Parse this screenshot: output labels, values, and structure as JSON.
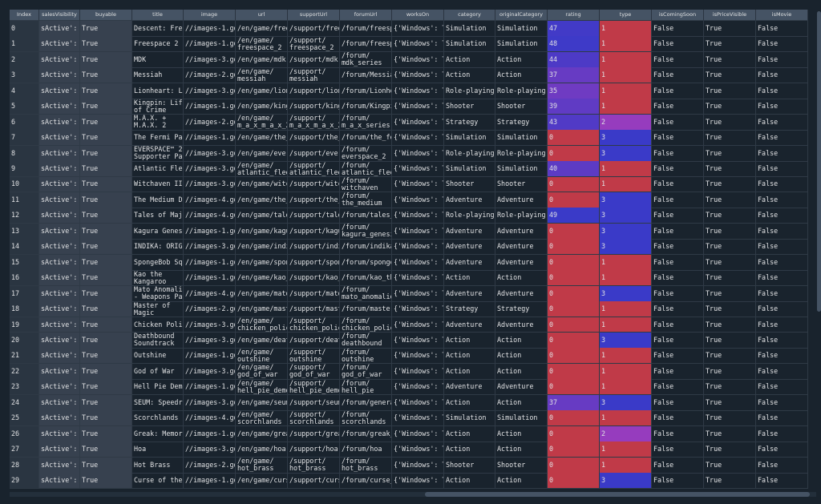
{
  "table": {
    "columns": [
      "Index",
      "salesVisibility",
      "buyable",
      "title",
      "image",
      "url",
      "supportUrl",
      "forumUrl",
      "worksOn",
      "category",
      "originalCategory",
      "rating",
      "type",
      "isComingSoon",
      "isPriceVisible",
      "isMovie"
    ],
    "rows": [
      [
        0,
        "sActive': …",
        "True",
        "Descent: Free…",
        "//images-1.go…",
        "/en/game/free…",
        "/support/free…",
        "/forum/freesp…",
        "{'Windows': T…",
        "Simulation",
        "Simulation",
        47,
        1,
        "False",
        "True",
        "False"
      ],
      [
        1,
        "sActive': …",
        "True",
        "Freespace 2",
        "//images-1.go…",
        "/en/game/\nfreespace_2",
        "/support/\nfreespace_2",
        "/forum/freesp…",
        "{'Windows': T…",
        "Simulation",
        "Simulation",
        48,
        1,
        "False",
        "True",
        "False"
      ],
      [
        2,
        "sActive': …",
        "True",
        "MDK",
        "//images-3.go…",
        "/en/game/mdk",
        "/support/mdk",
        "/forum/\nmdk_series",
        "{'Windows': T…",
        "Action",
        "Action",
        44,
        1,
        "False",
        "True",
        "False"
      ],
      [
        3,
        "sActive': …",
        "True",
        "Messiah",
        "//images-2.go…",
        "/en/game/\nmessiah",
        "/support/\nmessiah",
        "/forum/Messiah",
        "{'Windows': T…",
        "Action",
        "Action",
        37,
        1,
        "False",
        "True",
        "False"
      ],
      [
        4,
        "sActive': …",
        "True",
        "Lionheart: Le…",
        "//images-3.go…",
        "/en/game/lion…",
        "/support/lion…",
        "/forum/Lionhe…",
        "{'Windows': T…",
        "Role-playing",
        "Role-playing",
        35,
        1,
        "False",
        "True",
        "False"
      ],
      [
        5,
        "sActive': …",
        "True",
        "Kingpin: Life\nof Crime",
        "//images-1.go…",
        "/en/game/king…",
        "/support/king…",
        "/forum/Kingpi…",
        "{'Windows': T…",
        "Shooter",
        "Shooter",
        39,
        1,
        "False",
        "True",
        "False"
      ],
      [
        6,
        "sActive': …",
        "True",
        "M.A.X. +\nM.A.X. 2",
        "//images-2.go…",
        "/en/game/\nm_a_x_m_a_x_2",
        "/support/\nm_a_x_m_a_x_2",
        "/forum/\nm_a_x_series",
        "{'Windows': T…",
        "Strategy",
        "Strategy",
        43,
        2,
        "False",
        "True",
        "False"
      ],
      [
        7,
        "sActive': …",
        "True",
        "The Fermi Par…",
        "//images-1.go…",
        "/en/game/the_…",
        "/support/the_…",
        "/forum/the_fe…",
        "{'Windows': T…",
        "Simulation",
        "Simulation",
        0,
        3,
        "False",
        "True",
        "False"
      ],
      [
        8,
        "sActive': …",
        "True",
        "EVERSPACE™ 2 -\nSupporter Pack",
        "//images-3.go…",
        "/en/game/ever…",
        "/support/ever…",
        "/forum/\neverspace_2",
        "{'Windows': T…",
        "Role-playing",
        "Role-playing",
        0,
        3,
        "False",
        "True",
        "False"
      ],
      [
        9,
        "sActive': …",
        "True",
        "Atlantic Fleet",
        "//images-3.go…",
        "/en/game/\natlantic_fleet",
        "/support/\natlantic_fleet",
        "/forum/\natlantic_fleet",
        "{'Windows': T…",
        "Simulation",
        "Simulation",
        40,
        1,
        "False",
        "True",
        "False"
      ],
      [
        10,
        "sActive': …",
        "True",
        "Witchaven II:…",
        "//images-3.go…",
        "/en/game/witc…",
        "/support/witc…",
        "/forum/\nwitchaven",
        "{'Windows': T…",
        "Shooter",
        "Shooter",
        0,
        1,
        "False",
        "True",
        "False"
      ],
      [
        11,
        "sActive': …",
        "True",
        "The Medium De…",
        "//images-4.go…",
        "/en/game/the_…",
        "/support/the_…",
        "/forum/\nthe_medium",
        "{'Windows': T…",
        "Adventure",
        "Adventure",
        0,
        3,
        "False",
        "True",
        "False"
      ],
      [
        12,
        "sActive': …",
        "True",
        "Tales of Maj'…",
        "//images-4.go…",
        "/en/game/tale…",
        "/support/tale…",
        "/forum/tales_…",
        "{'Windows': T…",
        "Role-playing",
        "Role-playing",
        49,
        3,
        "False",
        "True",
        "False"
      ],
      [
        13,
        "sActive': …",
        "True",
        "Kagura Genesi…",
        "//images-1.go…",
        "/en/game/kagu…",
        "/support/kagu…",
        "/forum/\nkagura_genesis",
        "{'Windows': T…",
        "Adventure",
        "Adventure",
        0,
        3,
        "False",
        "True",
        "False"
      ],
      [
        14,
        "sActive': …",
        "True",
        "INDIKA: ORIGI…",
        "//images-3.go…",
        "/en/game/indi…",
        "/support/indi…",
        "/forum/indika",
        "{'Windows': T…",
        "Adventure",
        "Adventure",
        0,
        3,
        "False",
        "True",
        "False"
      ],
      [
        15,
        "sActive': …",
        "True",
        "SpongeBob Squ…",
        "//images-1.go…",
        "/en/game/spon…",
        "/support/spon…",
        "/forum/sponge…",
        "{'Windows': T…",
        "Adventure",
        "Adventure",
        0,
        1,
        "False",
        "True",
        "False"
      ],
      [
        16,
        "sActive': …",
        "True",
        "Kao the\nKangaroo",
        "//images-1.go…",
        "/en/game/kao_…",
        "/support/kao_…",
        "/forum/kao_th…",
        "{'Windows': T…",
        "Action",
        "Action",
        0,
        1,
        "False",
        "True",
        "False"
      ],
      [
        17,
        "sActive': …",
        "True",
        "Mato Anomalies\n- Weapons Pack",
        "//images-4.go…",
        "/en/game/mato…",
        "/support/mato…",
        "/forum/\nmato_anomalies",
        "{'Windows': T…",
        "Adventure",
        "Adventure",
        0,
        3,
        "False",
        "True",
        "False"
      ],
      [
        18,
        "sActive': …",
        "True",
        "Master of\nMagic",
        "//images-2.go…",
        "/en/game/mast…",
        "/support/mast…",
        "/forum/master…",
        "{'Windows': T…",
        "Strategy",
        "Strategy",
        0,
        1,
        "False",
        "True",
        "False"
      ],
      [
        19,
        "sActive': …",
        "True",
        "Chicken Police",
        "//images-3.go…",
        "/en/game/\nchicken_police",
        "/support/\nchicken_police",
        "/forum/\nchicken_police",
        "{'Windows': T…",
        "Adventure",
        "Adventure",
        0,
        1,
        "False",
        "True",
        "False"
      ],
      [
        20,
        "sActive': …",
        "True",
        "Deathbound\nSoundtrack",
        "//images-3.go…",
        "/en/game/deat…",
        "/support/deat…",
        "/forum/\ndeathbound",
        "{'Windows': T…",
        "Action",
        "Action",
        0,
        3,
        "False",
        "True",
        "False"
      ],
      [
        21,
        "sActive': …",
        "True",
        "Outshine",
        "//images-1.go…",
        "/en/game/\noutshine",
        "/support/\noutshine",
        "/forum/\noutshine",
        "{'Windows': T…",
        "Action",
        "Action",
        0,
        1,
        "False",
        "True",
        "False"
      ],
      [
        22,
        "sActive': …",
        "True",
        "God of War",
        "//images-3.go…",
        "/en/game/\ngod_of_war",
        "/support/\ngod_of_war",
        "/forum/\ngod_of_war",
        "{'Windows': T…",
        "Action",
        "Action",
        0,
        1,
        "False",
        "True",
        "False"
      ],
      [
        23,
        "sActive': …",
        "True",
        "Hell Pie Demo",
        "//images-1.go…",
        "/en/game/\nhell_pie_demo",
        "/support/\nhell_pie_demo",
        "/forum/\nhell_pie",
        "{'Windows': T…",
        "Adventure",
        "Adventure",
        0,
        1,
        "False",
        "True",
        "False"
      ],
      [
        24,
        "sActive': …",
        "True",
        "SEUM: Speedru…",
        "//images-3.go…",
        "/en/game/seum…",
        "/support/seum…",
        "/forum/general",
        "{'Windows': T…",
        "Action",
        "Action",
        37,
        3,
        "False",
        "True",
        "False"
      ],
      [
        25,
        "sActive': …",
        "True",
        "Scorchlands",
        "//images-4.go…",
        "/en/game/\nscorchlands",
        "/support/\nscorchlands",
        "/forum/\nscorchlands",
        "{'Windows': T…",
        "Simulation",
        "Simulation",
        0,
        1,
        "False",
        "True",
        "False"
      ],
      [
        26,
        "sActive': …",
        "True",
        "Greak: Memori…",
        "//images-1.go…",
        "/en/game/grea…",
        "/support/grea…",
        "/forum/greak_…",
        "{'Windows': T…",
        "Action",
        "Action",
        0,
        2,
        "False",
        "True",
        "False"
      ],
      [
        27,
        "sActive': …",
        "True",
        "Hoa",
        "//images-3.go…",
        "/en/game/hoa",
        "/support/hoa",
        "/forum/hoa",
        "{'Windows': T…",
        "Action",
        "Action",
        0,
        1,
        "False",
        "True",
        "False"
      ],
      [
        28,
        "sActive': …",
        "True",
        "Hot Brass",
        "//images-2.go…",
        "/en/game/\nhot_brass",
        "/support/\nhot_brass",
        "/forum/\nhot_brass",
        "{'Windows': T…",
        "Shooter",
        "Shooter",
        0,
        1,
        "False",
        "True",
        "False"
      ],
      [
        29,
        "sActive': …",
        "True",
        "Curse of the …",
        "//images-1.go…",
        "/en/game/curs…",
        "/support/curs…",
        "/forum/curse_…",
        "{'Windows': T…",
        "Action",
        "Action",
        0,
        3,
        "False",
        "True",
        "False"
      ]
    ],
    "heatmap_columns": [
      11,
      12
    ]
  }
}
